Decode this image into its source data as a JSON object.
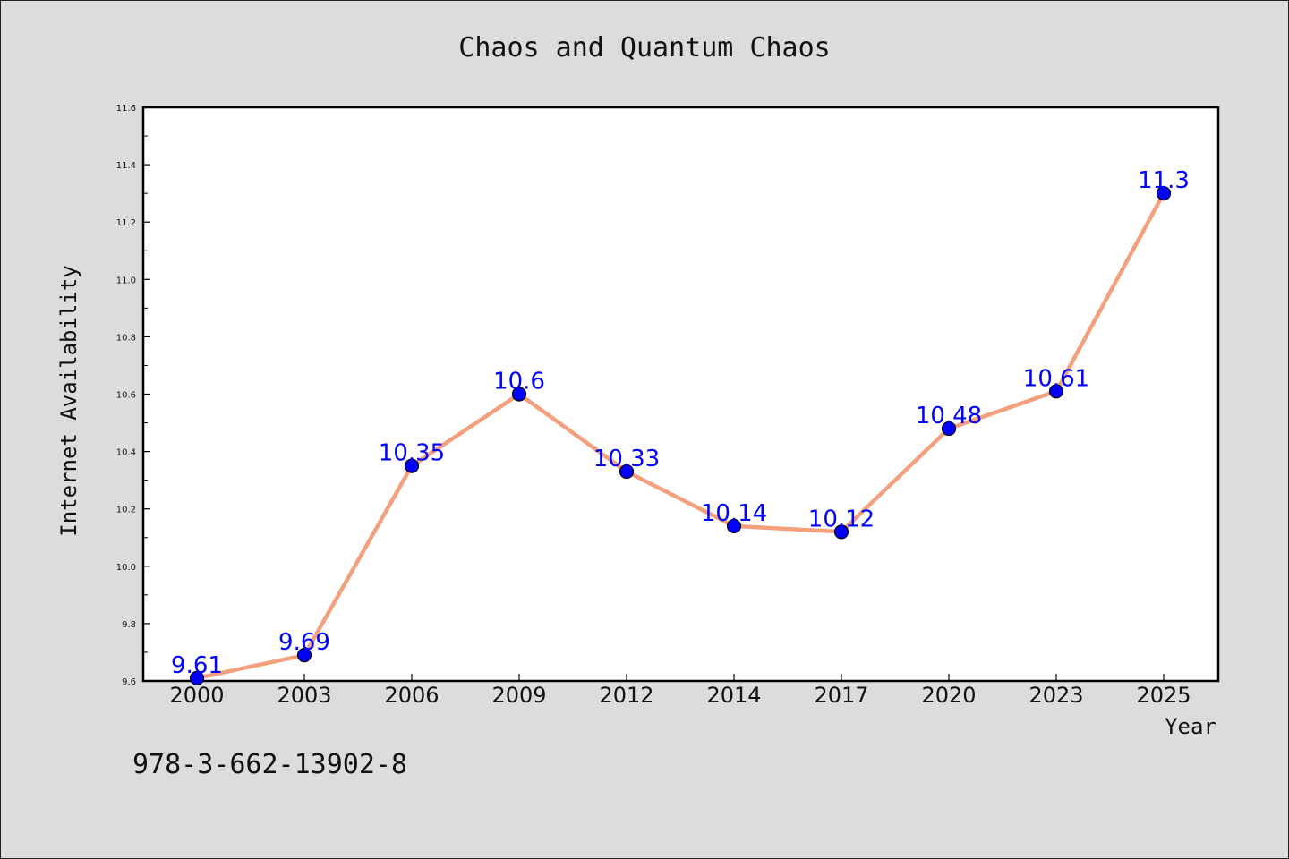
{
  "chart_data": {
    "type": "line",
    "title": "Chaos and Quantum Chaos",
    "xlabel": "Year",
    "ylabel": "Internet Availability",
    "categories": [
      "2000",
      "2003",
      "2006",
      "2009",
      "2012",
      "2014",
      "2017",
      "2020",
      "2023",
      "2025"
    ],
    "series": [
      {
        "values": [
          9.61,
          9.69,
          10.35,
          10.6,
          10.33,
          10.14,
          10.12,
          10.48,
          10.61,
          11.3
        ],
        "labels": [
          "9.61",
          "9.69",
          "10.35",
          "10.6",
          "10.33",
          "10.14",
          "10.12",
          "10.48",
          "10.61",
          "11.3"
        ],
        "line_color": "#f4a07e",
        "marker_color": "#0000ff"
      }
    ],
    "ylim": [
      9.6,
      11.6
    ],
    "yticks": [
      "9.6",
      "9.8",
      "10.0",
      "10.2",
      "10.4",
      "10.6",
      "10.8",
      "11.0",
      "11.2",
      "11.4",
      "11.6"
    ],
    "grid": false,
    "legend": "none"
  },
  "footer": {
    "isbn": "978-3-662-13902-8"
  }
}
